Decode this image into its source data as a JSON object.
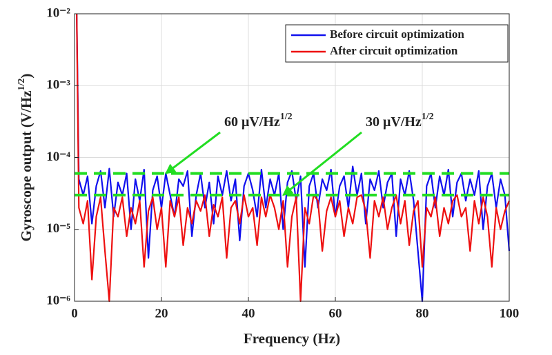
{
  "chart_data": {
    "type": "line",
    "xlabel": "Frequency (Hz)",
    "ylabel": [
      "Gyroscope output (V/Hz",
      "1/2",
      ")"
    ],
    "xlim": [
      0,
      100
    ],
    "xticks": [
      0,
      20,
      40,
      60,
      80,
      100
    ],
    "ylim": [
      1e-06,
      0.01
    ],
    "log_y": true,
    "grid": true,
    "yticks": [
      {
        "value": 1e-06,
        "label": "10⁻⁶"
      },
      {
        "value": 1e-05,
        "label": "10⁻⁵"
      },
      {
        "value": 0.0001,
        "label": "10⁻⁴"
      },
      {
        "value": 0.001,
        "label": "10⁻³"
      },
      {
        "value": 0.01,
        "label": "10⁻²"
      }
    ],
    "legend": "upper right",
    "x": [
      0.5,
      1,
      2,
      3,
      4,
      5,
      6,
      7,
      8,
      9,
      10,
      11,
      12,
      13,
      14,
      15,
      16,
      17,
      18,
      19,
      20,
      21,
      22,
      23,
      24,
      25,
      26,
      27,
      28,
      29,
      30,
      31,
      32,
      33,
      34,
      35,
      36,
      37,
      38,
      39,
      40,
      41,
      42,
      43,
      44,
      45,
      46,
      47,
      48,
      49,
      50,
      51,
      52,
      53,
      54,
      55,
      56,
      57,
      58,
      59,
      60,
      61,
      62,
      63,
      64,
      65,
      66,
      67,
      68,
      69,
      70,
      71,
      72,
      73,
      74,
      75,
      76,
      77,
      78,
      79,
      80,
      81,
      82,
      83,
      84,
      85,
      86,
      87,
      88,
      89,
      90,
      91,
      92,
      93,
      94,
      95,
      96,
      97,
      98,
      99,
      100
    ],
    "series": [
      {
        "name": "Before circuit optimization",
        "color": "#1010ee",
        "values": [
          0.01,
          5e-05,
          3e-05,
          5.5e-05,
          1.2e-05,
          4e-05,
          6.5e-05,
          2e-05,
          7e-05,
          1.5e-05,
          4.5e-05,
          3e-05,
          6e-05,
          1e-05,
          5e-05,
          2.5e-05,
          6.8e-05,
          4e-06,
          3.5e-05,
          5.5e-05,
          2e-05,
          6e-05,
          3e-05,
          1.5e-05,
          5e-05,
          4e-05,
          6.5e-05,
          8e-06,
          3e-05,
          6e-05,
          2e-05,
          4.5e-05,
          1.2e-05,
          5.5e-05,
          3e-05,
          6.5e-05,
          2.5e-05,
          5e-05,
          7e-06,
          4e-05,
          6e-05,
          3.5e-05,
          1.5e-05,
          6.8e-05,
          2e-05,
          5e-05,
          3e-05,
          6e-05,
          1e-05,
          4.5e-05,
          6.5e-05,
          2.5e-05,
          5.5e-05,
          3e-06,
          4e-05,
          6e-05,
          2e-05,
          5e-05,
          3.5e-05,
          6.8e-05,
          1.5e-05,
          4e-05,
          5.5e-05,
          2e-05,
          7.5e-05,
          3e-05,
          6e-05,
          1.2e-05,
          5e-05,
          3.5e-05,
          6.5e-05,
          2e-05,
          4.5e-05,
          6e-05,
          8e-06,
          5e-05,
          3e-05,
          6.5e-05,
          2.5e-05,
          5e-06,
          1e-06,
          4e-05,
          6e-05,
          2e-05,
          5.5e-05,
          3e-05,
          6.8e-05,
          1.5e-05,
          4.5e-05,
          6e-05,
          2.5e-05,
          5e-05,
          3e-05,
          6.5e-05,
          1e-05,
          4e-05,
          6e-05,
          2e-05,
          5e-05,
          3e-05,
          5e-06
        ]
      },
      {
        "name": "After circuit optimization",
        "color": "#ee1010",
        "values": [
          0.01,
          2e-05,
          1.2e-05,
          2.5e-05,
          2e-06,
          1.5e-05,
          2.8e-05,
          5e-06,
          1e-06,
          2e-05,
          1.5e-05,
          2.8e-05,
          8e-06,
          2e-05,
          1.2e-05,
          2.5e-05,
          3e-06,
          1.8e-05,
          2.8e-05,
          1e-05,
          2e-05,
          3e-06,
          2.5e-05,
          1.5e-05,
          2.8e-05,
          6e-06,
          2e-05,
          1.2e-05,
          2.5e-05,
          1.8e-05,
          3e-05,
          8e-06,
          2.2e-05,
          1.5e-05,
          2.8e-05,
          4e-06,
          2e-05,
          2.5e-05,
          1.2e-05,
          3e-05,
          1.5e-05,
          2e-05,
          6e-06,
          2.8e-05,
          1.5e-05,
          3e-05,
          2e-05,
          1e-05,
          2.5e-05,
          3e-06,
          1.5e-05,
          2.8e-05,
          1e-06,
          2e-05,
          1.2e-05,
          3e-05,
          2.5e-05,
          5e-06,
          1.8e-05,
          2.8e-05,
          1.5e-05,
          2.5e-05,
          8e-06,
          2e-05,
          1.2e-05,
          2.8e-05,
          3e-05,
          1.8e-05,
          4e-06,
          2.5e-05,
          1.5e-05,
          2.8e-05,
          1e-05,
          2e-05,
          3e-05,
          1.2e-05,
          2.5e-05,
          6e-06,
          1.8e-05,
          2.5e-05,
          3e-06,
          2e-05,
          1.5e-05,
          2.8e-05,
          8e-06,
          2e-05,
          1.2e-05,
          2.5e-05,
          3e-05,
          1.5e-05,
          2e-05,
          5e-06,
          2.5e-05,
          1.2e-05,
          2.8e-05,
          1.5e-05,
          3e-06,
          2e-05,
          1e-05,
          1.8e-05,
          2.5e-05
        ]
      }
    ],
    "reference_lines": [
      {
        "value": 6e-05,
        "color": "#22dd22"
      },
      {
        "value": 3e-05,
        "color": "#22dd22"
      }
    ],
    "annotations": [
      {
        "text": [
          "60 μV/Hz",
          "1/2"
        ],
        "xy": [
          21,
          6e-05
        ],
        "color": "#22dd22"
      },
      {
        "text": [
          "30 μV/Hz",
          "1/2"
        ],
        "xy": [
          48,
          3e-05
        ],
        "color": "#22dd22"
      }
    ]
  }
}
